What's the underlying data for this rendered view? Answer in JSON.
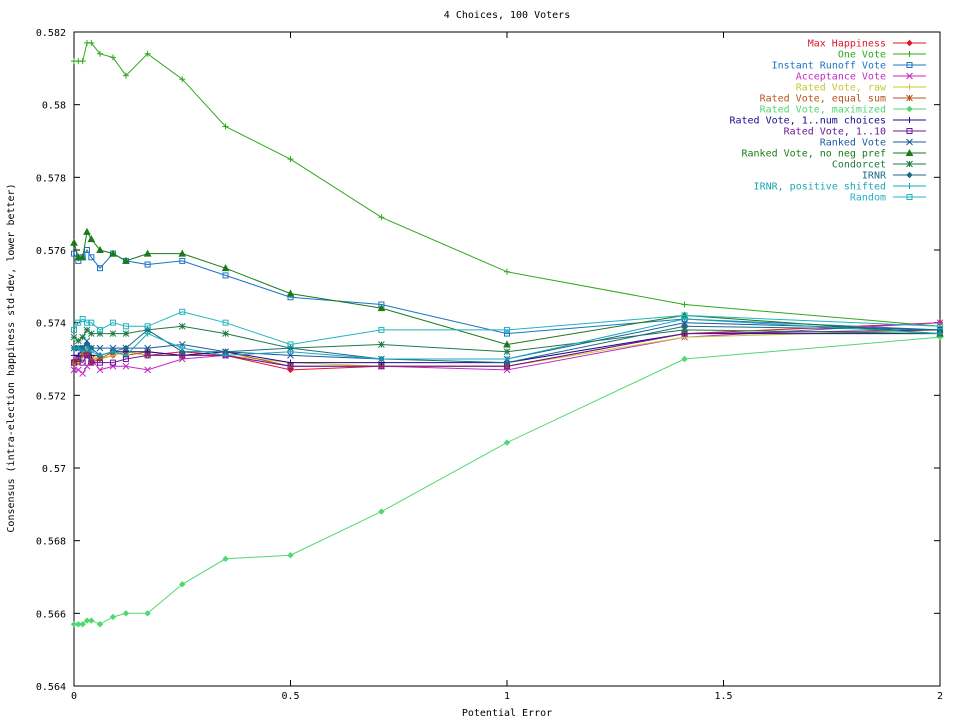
{
  "chart_data": {
    "type": "line",
    "title": "4 Choices, 100 Voters",
    "xlabel": "Potential Error",
    "ylabel": "Consensus (intra-election happiness std-dev, lower better)",
    "xlim": [
      0,
      2
    ],
    "ylim": [
      0.564,
      0.582
    ],
    "x_ticks": [
      0,
      0.5,
      1,
      1.5,
      2
    ],
    "x_tick_labels": [
      "0",
      "0.5",
      "1",
      "1.5",
      "2"
    ],
    "y_ticks": [
      0.564,
      0.566,
      0.568,
      0.57,
      0.572,
      0.574,
      0.576,
      0.578,
      0.58,
      0.582
    ],
    "y_tick_labels": [
      "0.564",
      "0.566",
      "0.568",
      "0.57",
      "0.572",
      "0.574",
      "0.576",
      "0.578",
      "0.58",
      "0.582"
    ],
    "grid": false,
    "legend_position": "top-right",
    "x": [
      0,
      0.01,
      0.02,
      0.03,
      0.04,
      0.06,
      0.09,
      0.12,
      0.17,
      0.25,
      0.35,
      0.5,
      0.71,
      1.0,
      1.41,
      2.0
    ],
    "series": [
      {
        "name": "Max Happiness",
        "color": "#e0142c",
        "marker": "diamond",
        "values": [
          0.57295,
          0.5729,
          0.5732,
          0.5731,
          0.5729,
          0.573,
          0.5731,
          0.5732,
          0.5731,
          0.5732,
          0.5731,
          0.5727,
          0.5728,
          0.5728,
          0.5737,
          0.574
        ]
      },
      {
        "name": "One Vote",
        "color": "#2caa18",
        "marker": "plus",
        "values": [
          0.5812,
          0.5812,
          0.5812,
          0.5817,
          0.5817,
          0.5814,
          0.5813,
          0.5808,
          0.5814,
          0.5807,
          0.5794,
          0.5785,
          0.5769,
          0.5754,
          0.5745,
          0.5739
        ]
      },
      {
        "name": "Instant Runoff Vote",
        "color": "#1a74c6",
        "marker": "square",
        "values": [
          0.5759,
          0.5757,
          0.5758,
          0.576,
          0.5758,
          0.5755,
          0.5759,
          0.5757,
          0.5756,
          0.5757,
          0.5753,
          0.5747,
          0.5745,
          0.5737,
          0.5741,
          0.5738
        ]
      },
      {
        "name": "Acceptance Vote",
        "color": "#c42ac4",
        "marker": "x",
        "values": [
          0.5727,
          0.5727,
          0.5726,
          0.5728,
          0.573,
          0.5727,
          0.5728,
          0.5728,
          0.5727,
          0.573,
          0.5731,
          0.5728,
          0.5728,
          0.5727,
          0.5736,
          0.574
        ]
      },
      {
        "name": "Rated Vote, raw",
        "color": "#c8c832",
        "marker": "plus",
        "values": [
          0.5729,
          0.5729,
          0.5731,
          0.5732,
          0.5731,
          0.573,
          0.5731,
          0.5732,
          0.5731,
          0.5731,
          0.5731,
          0.5729,
          0.5728,
          0.5728,
          0.5736,
          0.5738
        ]
      },
      {
        "name": "Rated Vote, equal sum",
        "color": "#b8541a",
        "marker": "star",
        "values": [
          0.5729,
          0.573,
          0.5731,
          0.5732,
          0.573,
          0.573,
          0.5732,
          0.5731,
          0.5732,
          0.5731,
          0.5732,
          0.5728,
          0.5728,
          0.5728,
          0.5737,
          0.5738
        ]
      },
      {
        "name": "Rated Vote, maximized",
        "color": "#50d870",
        "marker": "diamond",
        "values": [
          0.5657,
          0.5657,
          0.5657,
          0.5658,
          0.5658,
          0.5657,
          0.5659,
          0.566,
          0.566,
          0.5668,
          0.5675,
          0.5676,
          0.5688,
          0.5707,
          0.573,
          0.5736
        ]
      },
      {
        "name": "Rated Vote, 1..num choices",
        "color": "#1a0a8c",
        "marker": "plus",
        "values": [
          0.5731,
          0.5731,
          0.5733,
          0.5734,
          0.5731,
          0.5731,
          0.5732,
          0.5732,
          0.5732,
          0.5731,
          0.5732,
          0.5729,
          0.5729,
          0.5729,
          0.5737,
          0.5737
        ]
      },
      {
        "name": "Rated Vote, 1..10",
        "color": "#6a1a9a",
        "marker": "square",
        "values": [
          0.5729,
          0.573,
          0.5729,
          0.5731,
          0.5729,
          0.5729,
          0.5729,
          0.573,
          0.5731,
          0.5731,
          0.5731,
          0.5728,
          0.5728,
          0.5728,
          0.5737,
          0.5738
        ]
      },
      {
        "name": "Ranked Vote",
        "color": "#1a5aa0",
        "marker": "x",
        "values": [
          0.5733,
          0.5733,
          0.5733,
          0.5735,
          0.5733,
          0.5733,
          0.5733,
          0.5733,
          0.5733,
          0.5734,
          0.5732,
          0.5731,
          0.573,
          0.573,
          0.574,
          0.5738
        ]
      },
      {
        "name": "Ranked Vote, no neg pref",
        "color": "#1a7a1a",
        "marker": "triangle",
        "values": [
          0.5762,
          0.5758,
          0.5758,
          0.5765,
          0.5763,
          0.576,
          0.5759,
          0.5757,
          0.5759,
          0.5759,
          0.5755,
          0.5748,
          0.5744,
          0.5734,
          0.5742,
          0.5737
        ]
      },
      {
        "name": "Condorcet",
        "color": "#1e7a46",
        "marker": "star",
        "values": [
          0.5736,
          0.5735,
          0.5736,
          0.5738,
          0.5737,
          0.5737,
          0.5737,
          0.5737,
          0.5738,
          0.5739,
          0.5737,
          0.5733,
          0.5734,
          0.5732,
          0.5738,
          0.5737
        ]
      },
      {
        "name": "IRNR",
        "color": "#1a6a8a",
        "marker": "diamond",
        "values": [
          0.5733,
          0.5733,
          0.5733,
          0.5734,
          0.5733,
          0.5731,
          0.5732,
          0.5733,
          0.5738,
          0.5732,
          0.5732,
          0.5733,
          0.573,
          0.5729,
          0.5739,
          0.5738
        ]
      },
      {
        "name": "IRNR, positive shifted",
        "color": "#18a8b8",
        "marker": "plus",
        "values": [
          0.5733,
          0.5733,
          0.5732,
          0.5733,
          0.5732,
          0.5731,
          0.5732,
          0.5731,
          0.5737,
          0.5733,
          0.5731,
          0.5732,
          0.573,
          0.573,
          0.5741,
          0.5737
        ]
      },
      {
        "name": "Random",
        "color": "#20b4c0",
        "marker": "square",
        "values": [
          0.5738,
          0.574,
          0.5741,
          0.574,
          0.574,
          0.5738,
          0.574,
          0.5739,
          0.5739,
          0.5743,
          0.574,
          0.5734,
          0.5738,
          0.5738,
          0.5742,
          0.5739
        ]
      }
    ]
  }
}
